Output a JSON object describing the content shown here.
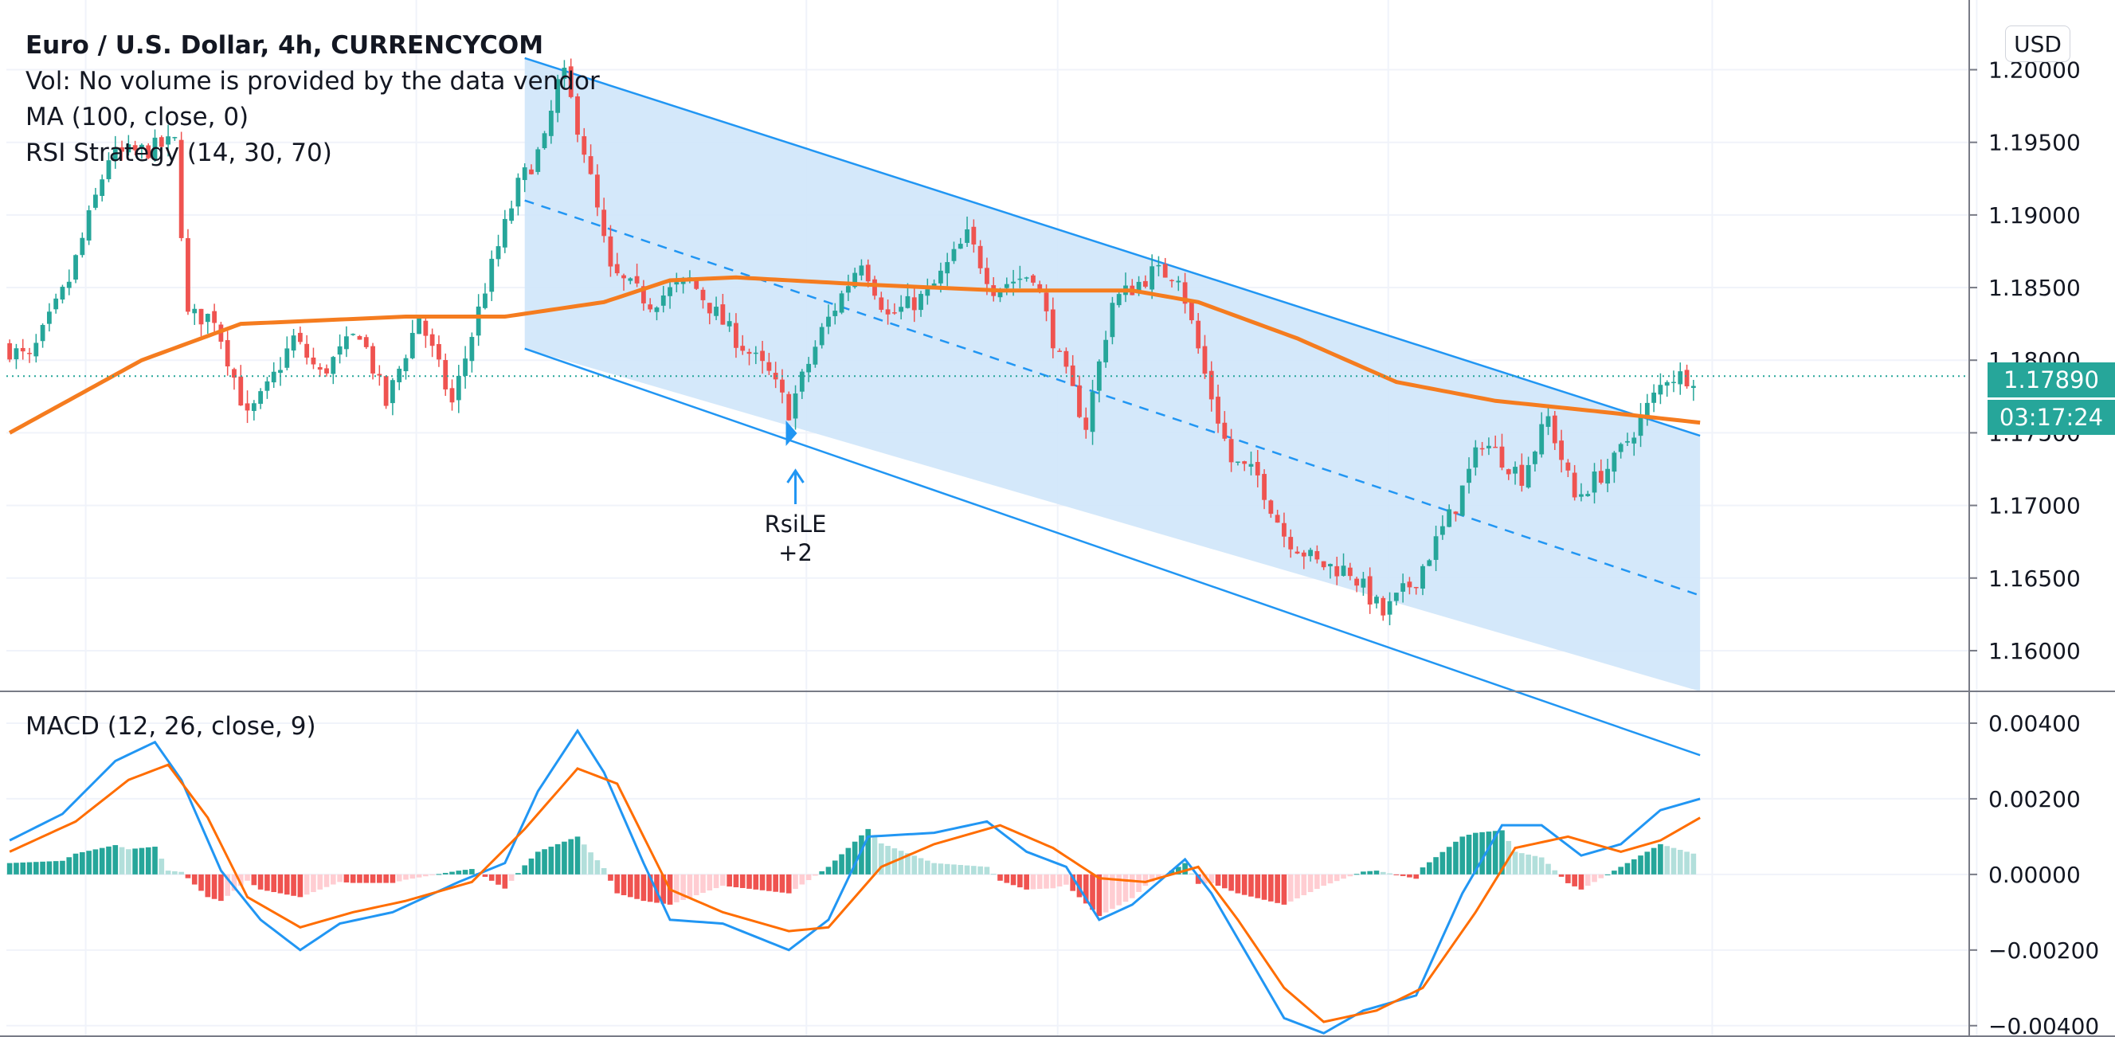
{
  "legend": {
    "title": "Euro / U.S. Dollar, 4h, CURRENCYCOM",
    "vol": "Vol: No volume is provided by the data vendor",
    "ma": "MA (100, close, 0)",
    "rsi": "RSI Strategy (14, 30, 70)",
    "macd": "MACD (12, 26, close, 9)"
  },
  "currency_button": "USD",
  "last_price_label": "1.17890",
  "countdown_label": "03:17:24",
  "colors": {
    "up": "#26a69a",
    "down": "#ef5350",
    "ma": "#f57c1f",
    "channel_fill": "#cfe6fa",
    "channel_line": "#2196f3",
    "macd_line": "#2196f3",
    "signal_line": "#ff6d00",
    "hist_pos_strong": "#26a69a",
    "hist_pos_weak": "#b2dfdb",
    "hist_neg_strong": "#ef5350",
    "hist_neg_weak": "#ffcdd2",
    "label_bg": "#26a69a"
  },
  "signal": {
    "label_line1": "RsiLE",
    "label_line2": "+2",
    "bar_index": 119,
    "price": 1.1742
  },
  "chart_data": [
    {
      "type": "candlestick",
      "price_axis": {
        "ticks": [
          "1.20000",
          "1.19500",
          "1.19000",
          "1.18500",
          "1.18000",
          "1.17500",
          "1.17000",
          "1.16500",
          "1.16000"
        ],
        "range": [
          1.1572,
          1.2048
        ]
      },
      "bar_count": 256,
      "keypoints": [
        [
          0,
          1.181
        ],
        [
          4,
          1.18
        ],
        [
          10,
          1.1855
        ],
        [
          16,
          1.194
        ],
        [
          22,
          1.1945
        ],
        [
          26,
          1.195
        ],
        [
          28,
          1.183
        ],
        [
          32,
          1.183
        ],
        [
          37,
          1.176
        ],
        [
          40,
          1.178
        ],
        [
          44,
          1.1815
        ],
        [
          48,
          1.179
        ],
        [
          54,
          1.182
        ],
        [
          58,
          1.177
        ],
        [
          63,
          1.183
        ],
        [
          68,
          1.177
        ],
        [
          73,
          1.185
        ],
        [
          78,
          1.192
        ],
        [
          82,
          1.195
        ],
        [
          84,
          1.199
        ],
        [
          85,
          1.1995
        ],
        [
          88,
          1.1945
        ],
        [
          92,
          1.186
        ],
        [
          98,
          1.184
        ],
        [
          104,
          1.1855
        ],
        [
          110,
          1.182
        ],
        [
          116,
          1.179
        ],
        [
          119,
          1.1765
        ],
        [
          124,
          1.182
        ],
        [
          130,
          1.187
        ],
        [
          134,
          1.183
        ],
        [
          140,
          1.1845
        ],
        [
          146,
          1.1885
        ],
        [
          150,
          1.185
        ],
        [
          156,
          1.186
        ],
        [
          160,
          1.18
        ],
        [
          164,
          1.1755
        ],
        [
          168,
          1.184
        ],
        [
          174,
          1.186
        ],
        [
          178,
          1.186
        ],
        [
          182,
          1.179
        ],
        [
          186,
          1.173
        ],
        [
          190,
          1.172
        ],
        [
          194,
          1.168
        ],
        [
          199,
          1.166
        ],
        [
          204,
          1.1655
        ],
        [
          209,
          1.1625
        ],
        [
          214,
          1.165
        ],
        [
          220,
          1.17
        ],
        [
          224,
          1.1745
        ],
        [
          230,
          1.172
        ],
        [
          234,
          1.176
        ],
        [
          238,
          1.1705
        ],
        [
          244,
          1.173
        ],
        [
          248,
          1.176
        ],
        [
          252,
          1.1789
        ],
        [
          255,
          1.1789
        ]
      ],
      "moving_average": {
        "name": "MA (100, close, 0)",
        "keypoints": [
          [
            0,
            1.175
          ],
          [
            20,
            1.18
          ],
          [
            35,
            1.1825
          ],
          [
            60,
            1.183
          ],
          [
            75,
            1.183
          ],
          [
            90,
            1.184
          ],
          [
            100,
            1.1855
          ],
          [
            110,
            1.1857
          ],
          [
            130,
            1.1852
          ],
          [
            150,
            1.1848
          ],
          [
            170,
            1.1848
          ],
          [
            180,
            1.184
          ],
          [
            195,
            1.1815
          ],
          [
            210,
            1.1785
          ],
          [
            225,
            1.1772
          ],
          [
            240,
            1.1765
          ],
          [
            256,
            1.1757
          ]
        ]
      },
      "regression_channel": {
        "start_bar": 78,
        "end_bar": 256,
        "upper": [
          1.2008,
          1.1748
        ],
        "middle": [
          1.191,
          1.1638
        ],
        "lower": [
          1.1808,
          1.1528
        ]
      }
    },
    {
      "type": "line",
      "title": "MACD (12, 26, close, 9)",
      "yticks": [
        "0.00400",
        "0.00200",
        "0.00000",
        "−0.00200",
        "−0.00400"
      ],
      "ylim": [
        -0.0043,
        0.0048
      ],
      "series": [
        {
          "key": "macd",
          "keypoints": [
            [
              0,
              0.0009
            ],
            [
              8,
              0.0016
            ],
            [
              16,
              0.003
            ],
            [
              22,
              0.0035
            ],
            [
              26,
              0.0025
            ],
            [
              32,
              0.0001
            ],
            [
              38,
              -0.0012
            ],
            [
              44,
              -0.002
            ],
            [
              50,
              -0.0013
            ],
            [
              58,
              -0.001
            ],
            [
              68,
              -0.0002
            ],
            [
              75,
              0.0003
            ],
            [
              80,
              0.0022
            ],
            [
              86,
              0.0038
            ],
            [
              90,
              0.0027
            ],
            [
              96,
              0.0003
            ],
            [
              100,
              -0.0012
            ],
            [
              108,
              -0.0013
            ],
            [
              118,
              -0.002
            ],
            [
              124,
              -0.0012
            ],
            [
              130,
              0.001
            ],
            [
              140,
              0.0011
            ],
            [
              148,
              0.0014
            ],
            [
              154,
              0.0006
            ],
            [
              160,
              0.0002
            ],
            [
              165,
              -0.0012
            ],
            [
              170,
              -0.0008
            ],
            [
              178,
              0.0004
            ],
            [
              182,
              -0.0005
            ],
            [
              187,
              -0.002
            ],
            [
              193,
              -0.0038
            ],
            [
              199,
              -0.0042
            ],
            [
              205,
              -0.0036
            ],
            [
              213,
              -0.0032
            ],
            [
              220,
              -0.0005
            ],
            [
              226,
              0.0013
            ],
            [
              232,
              0.0013
            ],
            [
              238,
              0.0005
            ],
            [
              244,
              0.0008
            ],
            [
              250,
              0.0017
            ],
            [
              256,
              0.002
            ]
          ]
        },
        {
          "key": "signal",
          "keypoints": [
            [
              0,
              0.0006
            ],
            [
              10,
              0.0014
            ],
            [
              18,
              0.0025
            ],
            [
              24,
              0.0029
            ],
            [
              30,
              0.0015
            ],
            [
              36,
              -0.0006
            ],
            [
              44,
              -0.0014
            ],
            [
              52,
              -0.001
            ],
            [
              60,
              -0.0007
            ],
            [
              70,
              -0.0002
            ],
            [
              78,
              0.0012
            ],
            [
              86,
              0.0028
            ],
            [
              92,
              0.0024
            ],
            [
              100,
              -0.0004
            ],
            [
              108,
              -0.001
            ],
            [
              118,
              -0.0015
            ],
            [
              124,
              -0.0014
            ],
            [
              132,
              0.0002
            ],
            [
              140,
              0.0008
            ],
            [
              150,
              0.0013
            ],
            [
              158,
              0.0007
            ],
            [
              165,
              -0.0001
            ],
            [
              172,
              -0.0002
            ],
            [
              180,
              0.0002
            ],
            [
              186,
              -0.0012
            ],
            [
              193,
              -0.003
            ],
            [
              199,
              -0.0039
            ],
            [
              207,
              -0.0036
            ],
            [
              214,
              -0.003
            ],
            [
              222,
              -0.001
            ],
            [
              228,
              0.0007
            ],
            [
              236,
              0.001
            ],
            [
              244,
              0.0006
            ],
            [
              250,
              0.0009
            ],
            [
              256,
              0.0015
            ]
          ]
        }
      ]
    }
  ]
}
